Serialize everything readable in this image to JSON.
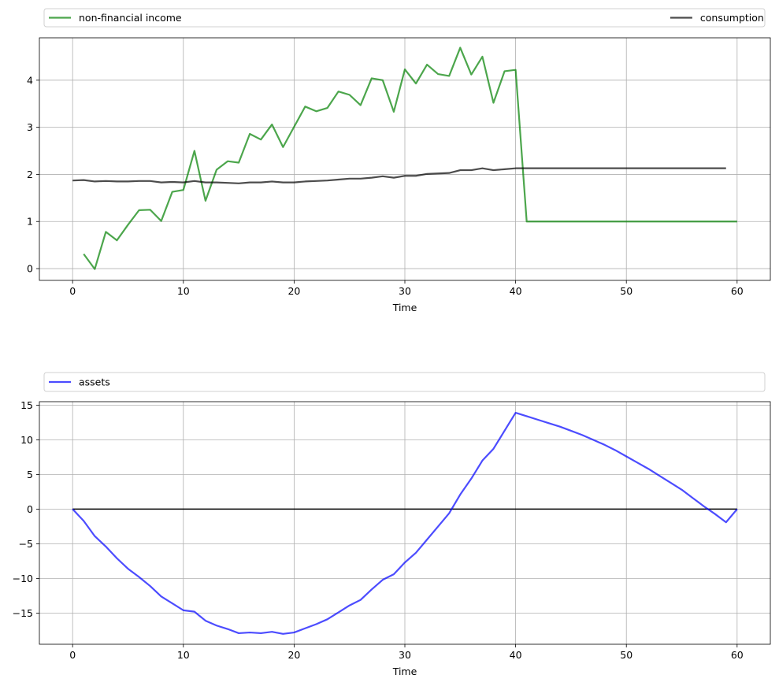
{
  "chart_data": [
    {
      "type": "line",
      "xlabel": "Time",
      "ylabel": "",
      "xlim": [
        -3,
        63
      ],
      "ylim": [
        -0.25,
        4.9
      ],
      "xticks": [
        0,
        10,
        20,
        30,
        40,
        50,
        60
      ],
      "yticks": [
        0,
        1,
        2,
        3,
        4
      ],
      "grid": true,
      "legend": {
        "placement": "top",
        "entries": [
          "non-financial income",
          "consumption"
        ]
      },
      "series": [
        {
          "name": "non-financial income",
          "color": "#008000",
          "x": [
            1,
            2,
            3,
            4,
            5,
            6,
            7,
            8,
            9,
            10,
            11,
            12,
            13,
            14,
            15,
            16,
            17,
            18,
            19,
            20,
            21,
            22,
            23,
            24,
            25,
            26,
            27,
            28,
            29,
            30,
            31,
            32,
            33,
            34,
            35,
            36,
            37,
            38,
            39,
            40,
            41,
            42,
            43,
            44,
            45,
            46,
            47,
            48,
            49,
            50,
            51,
            52,
            53,
            54,
            55,
            56,
            57,
            58,
            59,
            60
          ],
          "values": [
            0.31,
            -0.01,
            0.78,
            0.6,
            0.93,
            1.24,
            1.25,
            1.01,
            1.63,
            1.67,
            2.5,
            1.44,
            2.1,
            2.28,
            2.25,
            2.86,
            2.74,
            3.06,
            2.58,
            3.01,
            3.44,
            3.34,
            3.41,
            3.76,
            3.69,
            3.47,
            4.04,
            4.0,
            3.33,
            4.23,
            3.93,
            4.33,
            4.13,
            4.09,
            4.69,
            4.12,
            4.5,
            3.52,
            4.19,
            4.22,
            1.0,
            1.0,
            1.0,
            1.0,
            1.0,
            1.0,
            1.0,
            1.0,
            1.0,
            1.0,
            1.0,
            1.0,
            1.0,
            1.0,
            1.0,
            1.0,
            1.0,
            1.0,
            1.0,
            1.0
          ]
        },
        {
          "name": "consumption",
          "color": "#000000",
          "x": [
            0,
            1,
            2,
            3,
            4,
            5,
            6,
            7,
            8,
            9,
            10,
            11,
            12,
            13,
            14,
            15,
            16,
            17,
            18,
            19,
            20,
            21,
            22,
            23,
            24,
            25,
            26,
            27,
            28,
            29,
            30,
            31,
            32,
            33,
            34,
            35,
            36,
            37,
            38,
            39,
            40,
            41,
            42,
            43,
            44,
            45,
            46,
            47,
            48,
            49,
            50,
            51,
            52,
            53,
            54,
            55,
            56,
            57,
            58,
            59
          ],
          "values": [
            1.87,
            1.88,
            1.85,
            1.86,
            1.85,
            1.85,
            1.86,
            1.86,
            1.83,
            1.84,
            1.83,
            1.86,
            1.83,
            1.83,
            1.82,
            1.81,
            1.83,
            1.83,
            1.85,
            1.83,
            1.83,
            1.85,
            1.86,
            1.87,
            1.89,
            1.91,
            1.91,
            1.93,
            1.96,
            1.93,
            1.97,
            1.97,
            2.01,
            2.02,
            2.03,
            2.09,
            2.09,
            2.13,
            2.09,
            2.11,
            2.13,
            2.13,
            2.13,
            2.13,
            2.13,
            2.13,
            2.13,
            2.13,
            2.13,
            2.13,
            2.13,
            2.13,
            2.13,
            2.13,
            2.13,
            2.13,
            2.13,
            2.13,
            2.13,
            2.13
          ]
        }
      ]
    },
    {
      "type": "line",
      "xlabel": "Time",
      "ylabel": "",
      "xlim": [
        -3,
        63
      ],
      "ylim": [
        -19.5,
        15.5
      ],
      "xticks": [
        0,
        10,
        20,
        30,
        40,
        50,
        60
      ],
      "yticks": [
        -15,
        -10,
        -5,
        0,
        5,
        10,
        15
      ],
      "grid": true,
      "legend": {
        "placement": "top",
        "entries": [
          "assets"
        ]
      },
      "zero_line": {
        "y": 0,
        "x": [
          0,
          60
        ],
        "color": "#000000"
      },
      "series": [
        {
          "name": "assets",
          "color": "#0000ff",
          "x": [
            0,
            1,
            2,
            3,
            4,
            5,
            6,
            7,
            8,
            9,
            10,
            11,
            12,
            13,
            14,
            15,
            16,
            17,
            18,
            19,
            20,
            21,
            22,
            23,
            24,
            25,
            26,
            27,
            28,
            29,
            30,
            31,
            32,
            33,
            34,
            35,
            36,
            37,
            38,
            39,
            40,
            41,
            42,
            43,
            44,
            45,
            46,
            47,
            48,
            49,
            50,
            51,
            52,
            53,
            54,
            55,
            56,
            57,
            58,
            59,
            60
          ],
          "values": [
            0,
            -1.7,
            -3.9,
            -5.4,
            -7.1,
            -8.6,
            -9.8,
            -11.1,
            -12.6,
            -13.6,
            -14.6,
            -14.8,
            -16.1,
            -16.8,
            -17.3,
            -17.9,
            -17.8,
            -17.9,
            -17.7,
            -18.0,
            -17.8,
            -17.2,
            -16.6,
            -15.9,
            -14.9,
            -13.9,
            -13.1,
            -11.6,
            -10.2,
            -9.4,
            -7.7,
            -6.3,
            -4.4,
            -2.5,
            -0.6,
            2.1,
            4.4,
            7.0,
            8.7,
            11.3,
            13.9,
            13.4,
            12.9,
            12.4,
            11.9,
            11.3,
            10.7,
            10.0,
            9.3,
            8.5,
            7.6,
            6.7,
            5.8,
            4.8,
            3.8,
            2.8,
            1.6,
            0.4,
            -0.7,
            -1.9,
            0
          ]
        }
      ]
    }
  ]
}
